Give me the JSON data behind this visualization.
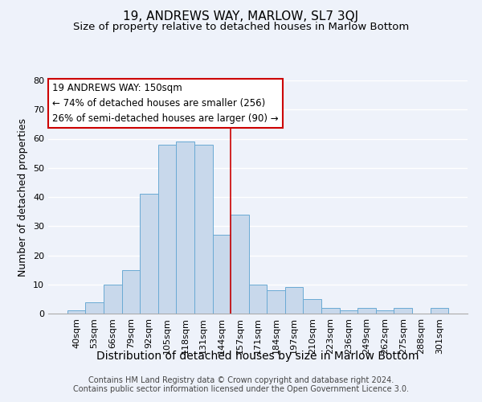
{
  "title": "19, ANDREWS WAY, MARLOW, SL7 3QJ",
  "subtitle": "Size of property relative to detached houses in Marlow Bottom",
  "xlabel": "Distribution of detached houses by size in Marlow Bottom",
  "ylabel": "Number of detached properties",
  "categories": [
    "40sqm",
    "53sqm",
    "66sqm",
    "79sqm",
    "92sqm",
    "105sqm",
    "118sqm",
    "131sqm",
    "144sqm",
    "157sqm",
    "171sqm",
    "184sqm",
    "197sqm",
    "210sqm",
    "223sqm",
    "236sqm",
    "249sqm",
    "262sqm",
    "275sqm",
    "288sqm",
    "301sqm"
  ],
  "values": [
    1,
    4,
    10,
    15,
    41,
    58,
    59,
    58,
    27,
    34,
    10,
    8,
    9,
    5,
    2,
    1,
    2,
    1,
    2,
    0,
    2
  ],
  "bar_color": "#c8d8eb",
  "bar_edge_color": "#6aaad4",
  "bar_width": 1.0,
  "ylim": [
    0,
    80
  ],
  "yticks": [
    0,
    10,
    20,
    30,
    40,
    50,
    60,
    70,
    80
  ],
  "reference_line_x": 8.5,
  "reference_line_color": "#cc0000",
  "annotation_title": "19 ANDREWS WAY: 150sqm",
  "annotation_line1": "← 74% of detached houses are smaller (256)",
  "annotation_line2": "26% of semi-detached houses are larger (90) →",
  "annotation_box_color": "#ffffff",
  "annotation_box_edge_color": "#cc0000",
  "footer_line1": "Contains HM Land Registry data © Crown copyright and database right 2024.",
  "footer_line2": "Contains public sector information licensed under the Open Government Licence 3.0.",
  "background_color": "#eef2fa",
  "grid_color": "#ffffff",
  "title_fontsize": 11,
  "subtitle_fontsize": 9.5,
  "xlabel_fontsize": 10,
  "ylabel_fontsize": 9,
  "tick_fontsize": 8,
  "annotation_fontsize": 8.5,
  "footer_fontsize": 7
}
